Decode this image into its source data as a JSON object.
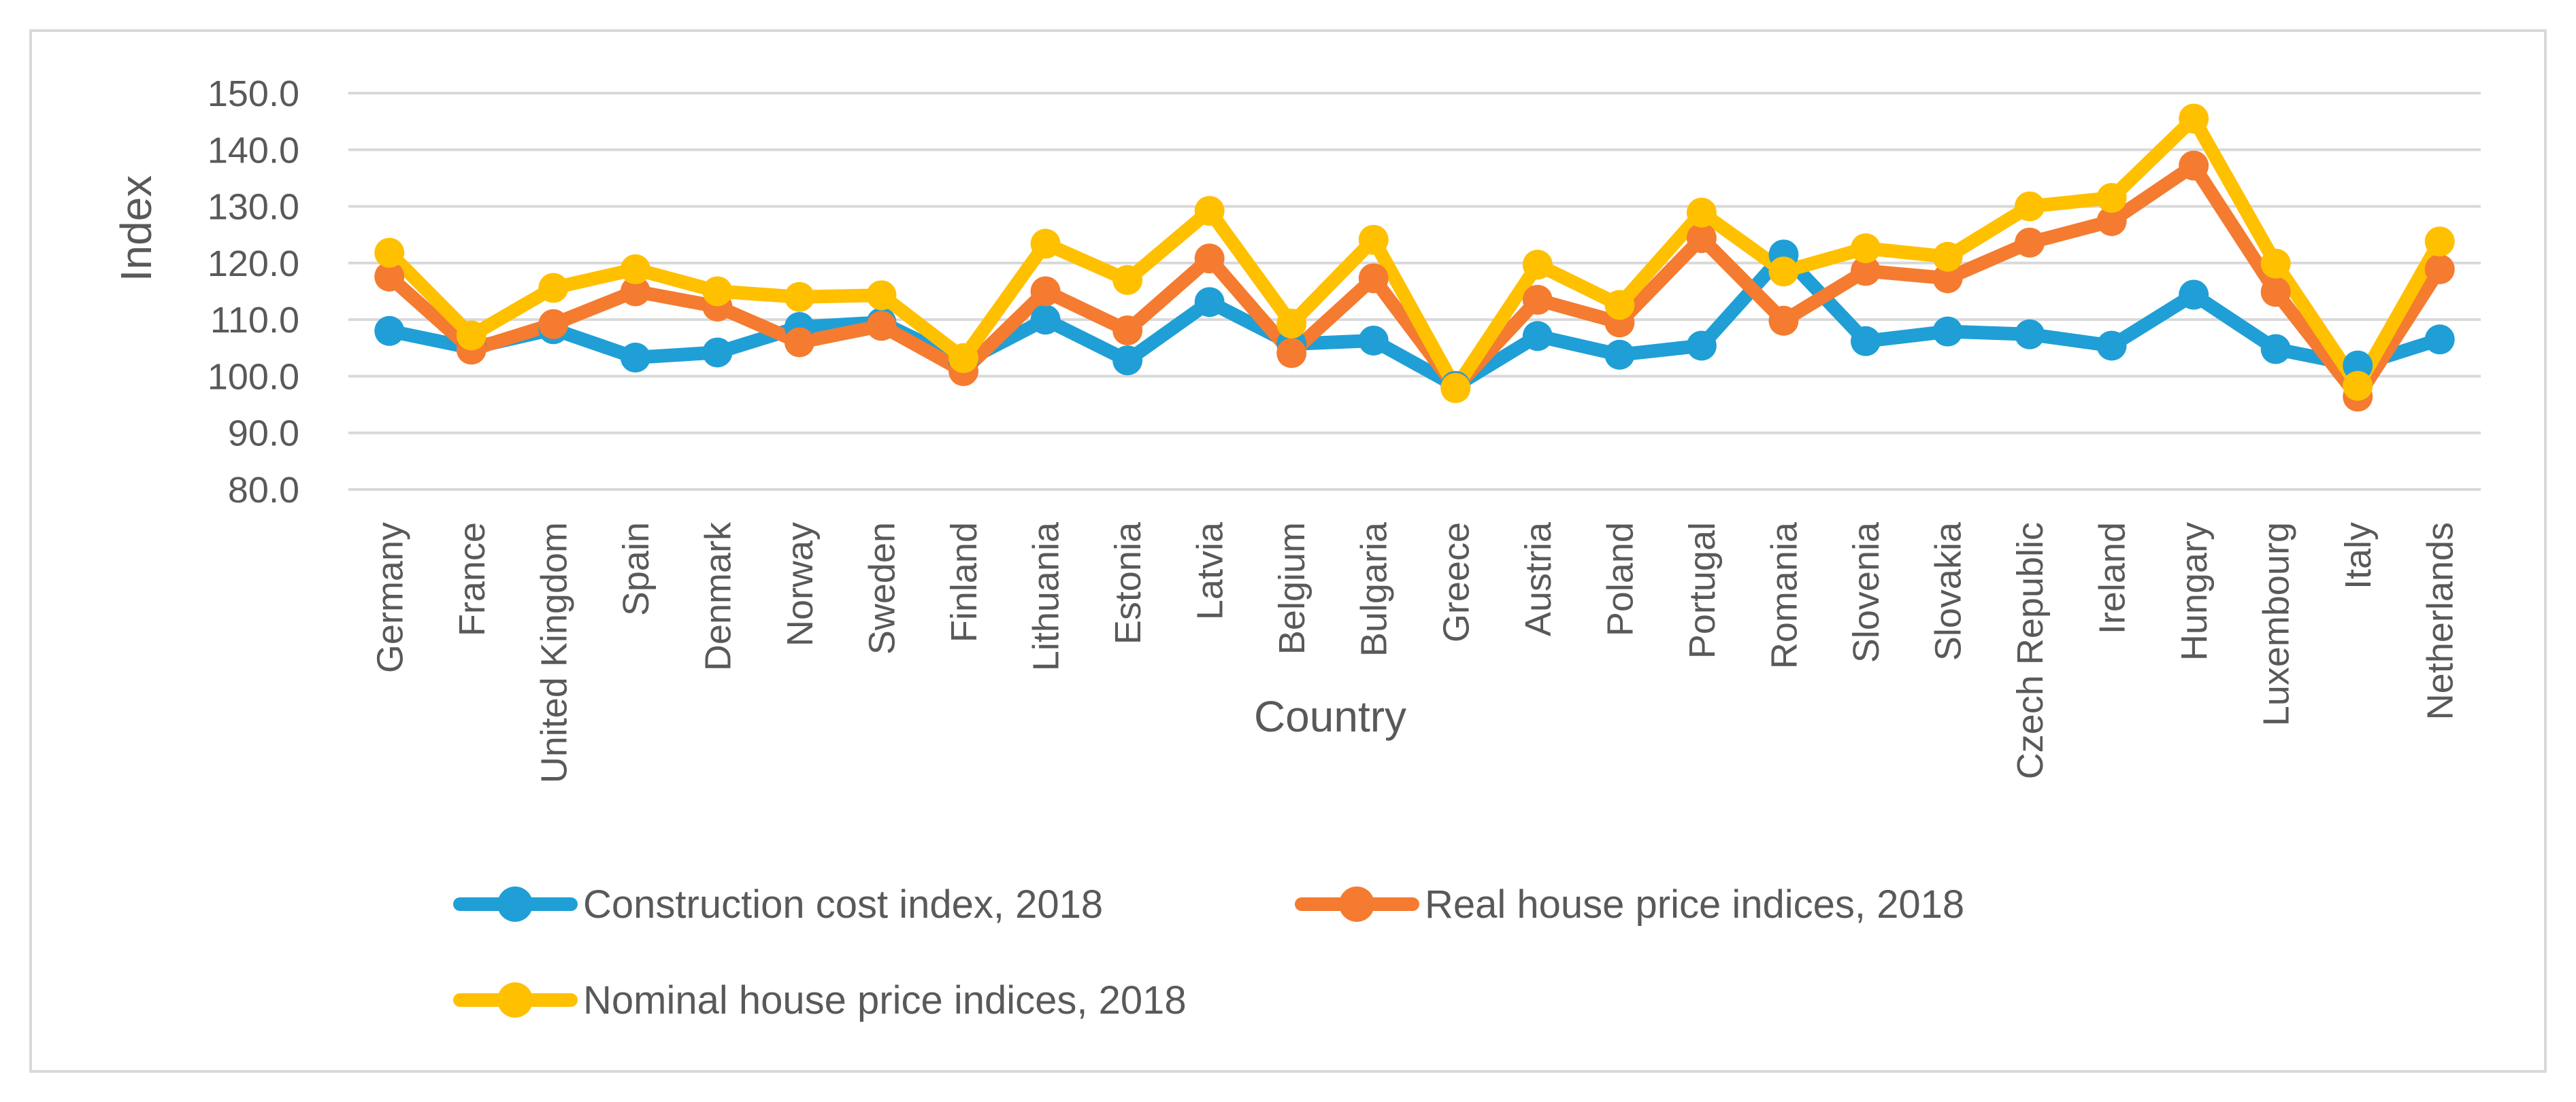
{
  "chart_data": {
    "type": "line",
    "title": "",
    "xlabel": "Country",
    "ylabel": "Index",
    "ylim": [
      80,
      150
    ],
    "y_ticks": [
      "80.0",
      "90.0",
      "100.0",
      "110.0",
      "120.0",
      "130.0",
      "140.0",
      "150.0"
    ],
    "grid": "horizontal",
    "legend_placement": "bottom",
    "categories": [
      "Germany",
      "France",
      "United Kingdom",
      "Spain",
      "Denmark",
      "Norway",
      "Sweden",
      "Finland",
      "Lithuania",
      "Estonia",
      "Latvia",
      "Belgium",
      "Bulgaria",
      "Greece",
      "Austria",
      "Poland",
      "Portugal",
      "Romania",
      "Slovenia",
      "Slovakia",
      "Czech Republic",
      "Ireland",
      "Hungary",
      "Luxembourg",
      "Italy",
      "Netherlands"
    ],
    "series": [
      {
        "name": "Construction cost index, 2018",
        "color": "#1f9fd6",
        "values": [
          108.0,
          105.0,
          108.3,
          103.3,
          104.2,
          108.7,
          109.5,
          102.5,
          110.0,
          102.8,
          113.1,
          105.7,
          106.3,
          98.3,
          107.1,
          103.8,
          105.4,
          121.5,
          106.2,
          107.9,
          107.4,
          105.4,
          114.4,
          104.8,
          101.9,
          106.5
        ]
      },
      {
        "name": "Real house price indices, 2018",
        "color": "#f47b30",
        "values": [
          117.6,
          104.7,
          109.2,
          115.0,
          112.3,
          106.0,
          108.9,
          100.9,
          115.0,
          108.1,
          120.8,
          104.1,
          117.3,
          98.0,
          113.5,
          109.5,
          124.4,
          109.8,
          118.6,
          117.3,
          123.6,
          127.4,
          137.2,
          114.9,
          96.4,
          118.9
        ]
      },
      {
        "name": "Nominal house price indices, 2018",
        "color": "#ffc000",
        "values": [
          121.8,
          107.2,
          115.6,
          118.9,
          115.0,
          114.0,
          114.3,
          103.2,
          123.4,
          117.0,
          129.2,
          109.3,
          124.1,
          97.9,
          119.7,
          112.6,
          128.9,
          118.5,
          122.6,
          121.1,
          130.0,
          131.5,
          145.5,
          119.9,
          98.3,
          123.8
        ]
      }
    ]
  }
}
